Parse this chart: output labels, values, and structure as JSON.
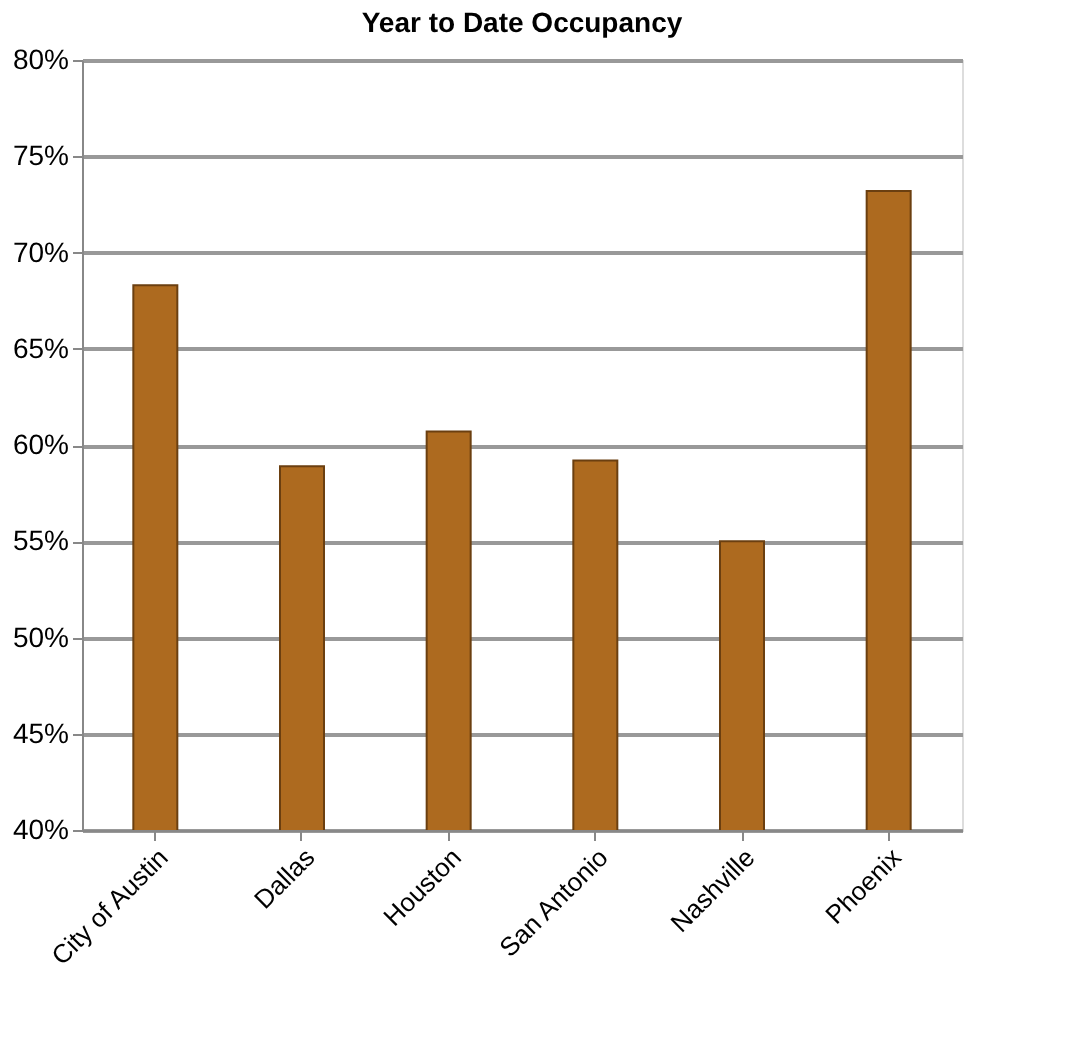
{
  "chart_data": {
    "type": "bar",
    "title": "Year to Date Occupancy",
    "categories": [
      "City of Austin",
      "Dallas",
      "Houston",
      "San Antonio",
      "Nashville",
      "Phoenix"
    ],
    "values": [
      68.3,
      58.9,
      60.7,
      59.2,
      55.0,
      73.2
    ],
    "color": "#ad6a1f",
    "ylim": [
      40,
      80
    ],
    "yticks": [
      {
        "value": 40,
        "label": "40%"
      },
      {
        "value": 45,
        "label": "45%"
      },
      {
        "value": 50,
        "label": "50%"
      },
      {
        "value": 55,
        "label": "55%"
      },
      {
        "value": 60,
        "label": "60%"
      },
      {
        "value": 65,
        "label": "65%"
      },
      {
        "value": 70,
        "label": "70%"
      },
      {
        "value": 75,
        "label": "75%"
      },
      {
        "value": 80,
        "label": "80%"
      }
    ],
    "grid": "y"
  }
}
